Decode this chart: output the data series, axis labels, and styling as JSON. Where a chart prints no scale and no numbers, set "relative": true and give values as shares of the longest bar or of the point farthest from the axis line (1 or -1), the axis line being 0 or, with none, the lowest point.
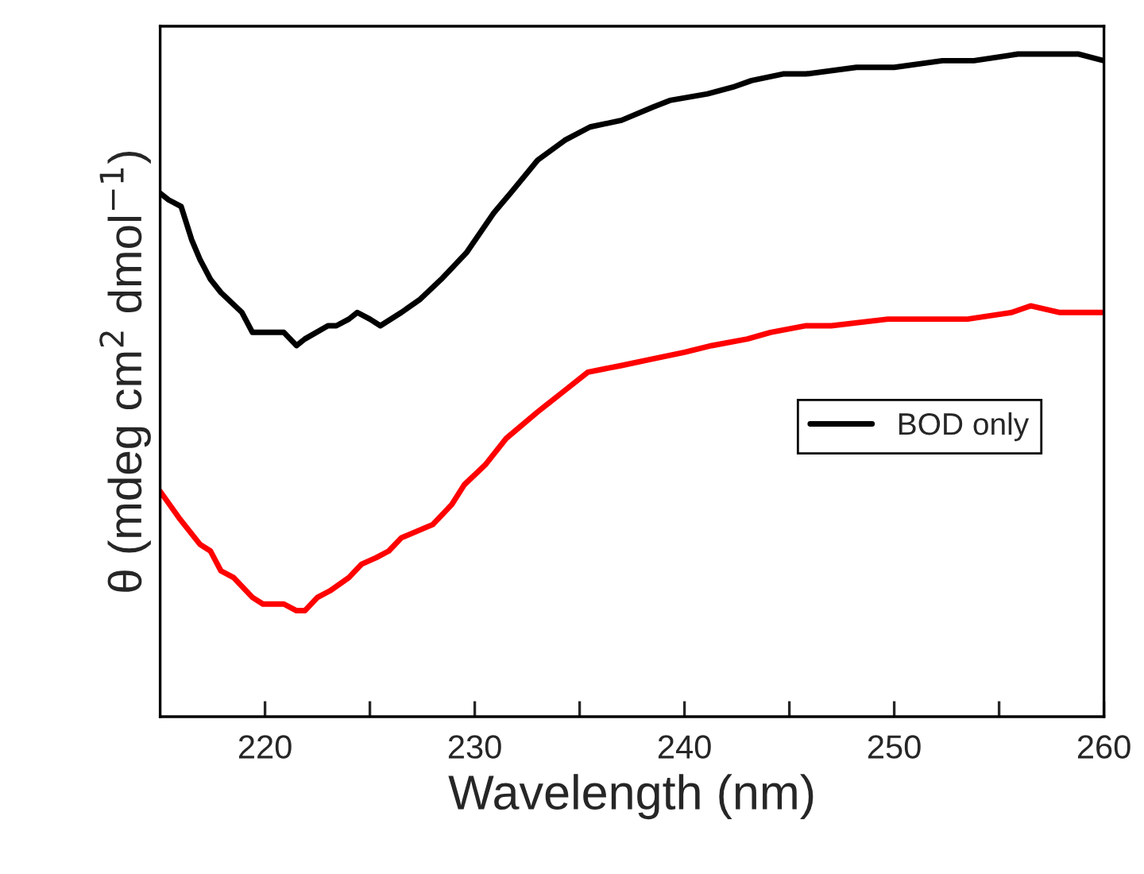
{
  "chart_data": {
    "type": "line",
    "relative": true,
    "xlabel": "Wavelength (nm)",
    "ylabel": "θ (mdeg cm$^{2}$ dmol$^{−1}$)",
    "xlim": [
      215,
      260
    ],
    "xticks": [
      220,
      {
        "value": 225,
        "label": null
      },
      230,
      {
        "value": 235,
        "label": null
      },
      240,
      {
        "value": 245,
        "label": null
      },
      250,
      {
        "value": 255,
        "label": null
      },
      260
    ],
    "legend": "center right",
    "grid": false,
    "marker": "none",
    "line_style": "solid",
    "series": [
      {
        "name": "BOD only",
        "color": "#000000",
        "x": [
          215,
          215.4,
          216.0,
          216.5,
          216.9,
          217.4,
          217.9,
          218.9,
          219.4,
          220.0,
          220.9,
          221.5,
          221.9,
          223.0,
          223.4,
          224.0,
          224.4,
          225.0,
          225.5,
          226.5,
          227.4,
          228.4,
          229.6,
          230.9,
          231.7,
          233.0,
          234.3,
          235.5,
          237.0,
          238.5,
          239.3,
          241.1,
          242.3,
          243.2,
          244.7,
          245.8,
          248.2,
          250.0,
          252.3,
          253.8,
          255.9,
          257.7,
          258.8,
          260.0
        ],
        "values": [
          0.79,
          0.78,
          0.77,
          0.72,
          0.69,
          0.66,
          0.64,
          0.61,
          0.58,
          0.58,
          0.58,
          0.56,
          0.57,
          0.59,
          0.59,
          0.6,
          0.61,
          0.6,
          0.59,
          0.61,
          0.63,
          0.66,
          0.7,
          0.76,
          0.79,
          0.84,
          0.87,
          0.89,
          0.9,
          0.92,
          0.93,
          0.94,
          0.95,
          0.96,
          0.97,
          0.97,
          0.98,
          0.98,
          0.99,
          0.99,
          1.0,
          1.0,
          1.0,
          0.99
        ]
      },
      {
        "color": "#ff0000",
        "x": [
          215,
          215.9,
          216.9,
          217.4,
          217.9,
          218.5,
          219.4,
          219.9,
          220.9,
          221.5,
          221.9,
          222.5,
          223.1,
          224.0,
          224.6,
          225.3,
          225.9,
          226.5,
          228.0,
          228.9,
          229.5,
          230.5,
          231.5,
          233.0,
          234.2,
          235.4,
          237.0,
          238.5,
          240.0,
          241.3,
          243.0,
          244.1,
          245.8,
          247.0,
          249.7,
          250.6,
          253.5,
          255.6,
          256.5,
          257.9,
          260.0
        ],
        "values": [
          0.34,
          0.3,
          0.26,
          0.25,
          0.22,
          0.21,
          0.18,
          0.17,
          0.17,
          0.16,
          0.16,
          0.18,
          0.19,
          0.21,
          0.23,
          0.24,
          0.25,
          0.27,
          0.29,
          0.32,
          0.35,
          0.38,
          0.42,
          0.46,
          0.49,
          0.52,
          0.53,
          0.54,
          0.55,
          0.56,
          0.57,
          0.58,
          0.59,
          0.59,
          0.6,
          0.6,
          0.6,
          0.61,
          0.62,
          0.61,
          0.61
        ]
      }
    ]
  }
}
